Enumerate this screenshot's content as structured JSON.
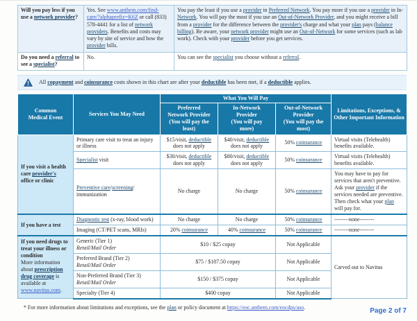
{
  "qa_table": {
    "rows": [
      {
        "question": [
          {
            "t": "Will you pay less if you use a ",
            "b": 1
          },
          {
            "t": "network provider",
            "b": 1,
            "u": 1
          },
          {
            "t": "?",
            "b": 1
          }
        ],
        "answer": [
          {
            "t": "Yes. See "
          },
          {
            "t": "www.anthem.com/find-care/?alphaprefix=K6Z",
            "l": 1
          },
          {
            "t": " or call (833) 578-4441 for a list of "
          },
          {
            "t": "network providers",
            "u": 1
          },
          {
            "t": ". Benefits and costs may vary by site of service and how the "
          },
          {
            "t": "provider",
            "u": 1
          },
          {
            "t": " bills."
          }
        ],
        "info": [
          {
            "t": "You pay the least if you use a "
          },
          {
            "t": "provider",
            "u": 1
          },
          {
            "t": " in "
          },
          {
            "t": "Preferred Network",
            "u": 1
          },
          {
            "t": ". You pay more if you use a "
          },
          {
            "t": "provider",
            "u": 1
          },
          {
            "t": " in In-"
          },
          {
            "t": "Network",
            "u": 1
          },
          {
            "t": ". You will pay the most if you use an "
          },
          {
            "t": "Out-of-Network Provider",
            "u": 1
          },
          {
            "t": ", and you might receive a bill from a "
          },
          {
            "t": "provider",
            "u": 1
          },
          {
            "t": " for the difference between the "
          },
          {
            "t": "provider's",
            "u": 1
          },
          {
            "t": " charge and what your "
          },
          {
            "t": "plan",
            "u": 1
          },
          {
            "t": " pays ("
          },
          {
            "t": "balance billing",
            "u": 1
          },
          {
            "t": "). Be aware, your "
          },
          {
            "t": "network provider",
            "u": 1
          },
          {
            "t": " might use an "
          },
          {
            "t": "Out-of-Network",
            "u": 1
          },
          {
            "t": " for some services (such as lab work). Check with your "
          },
          {
            "t": "provider",
            "u": 1
          },
          {
            "t": " before you get services."
          }
        ]
      },
      {
        "question": [
          {
            "t": "Do you need a ",
            "b": 1
          },
          {
            "t": "referral",
            "b": 1,
            "u": 1
          },
          {
            "t": " to see a ",
            "b": 1
          },
          {
            "t": "specialist",
            "b": 1,
            "u": 1
          },
          {
            "t": "?",
            "b": 1
          }
        ],
        "answer": [
          {
            "t": "No."
          }
        ],
        "info": [
          {
            "t": "You can see the "
          },
          {
            "t": "specialist",
            "u": 1
          },
          {
            "t": " you choose without a "
          },
          {
            "t": "referral",
            "u": 1
          },
          {
            "t": "."
          }
        ]
      }
    ]
  },
  "notice": {
    "segments": [
      {
        "t": "All "
      },
      {
        "t": "copayment",
        "b": 1,
        "u": 1
      },
      {
        "t": " and "
      },
      {
        "t": "coinsurance",
        "b": 1,
        "u": 1
      },
      {
        "t": " costs shown in this chart are after your "
      },
      {
        "t": "deductible",
        "b": 1,
        "u": 1
      },
      {
        "t": " has been met, if a "
      },
      {
        "t": "deductible",
        "b": 1,
        "u": 1
      },
      {
        "t": " applies."
      }
    ]
  },
  "main_table": {
    "header": {
      "common": [
        {
          "t": "Common"
        },
        {
          "br": 1
        },
        {
          "t": "Medical Event"
        }
      ],
      "services": [
        {
          "t": "Services You May Need"
        }
      ],
      "pay_group": [
        {
          "t": "What You Will Pay"
        }
      ],
      "preferred": [
        {
          "t": "Preferred"
        },
        {
          "br": 1
        },
        {
          "t": "Network Provider"
        },
        {
          "br": 1
        },
        {
          "t": "(You will pay the"
        },
        {
          "br": 1
        },
        {
          "t": "least)"
        }
      ],
      "in_network": [
        {
          "t": "In-Network"
        },
        {
          "br": 1
        },
        {
          "t": "Provider"
        },
        {
          "br": 1
        },
        {
          "t": "(You will pay"
        },
        {
          "br": 1
        },
        {
          "t": "more)"
        }
      ],
      "out_network": [
        {
          "t": "Out-of-Network"
        },
        {
          "br": 1
        },
        {
          "t": "Provider"
        },
        {
          "br": 1
        },
        {
          "t": "(You will pay the"
        },
        {
          "br": 1
        },
        {
          "t": "most)"
        }
      ],
      "limitations": [
        {
          "t": "Limitations, Exceptions, &"
        },
        {
          "br": 1
        },
        {
          "t": "Other Important Information"
        }
      ]
    },
    "sections": [
      {
        "event": [
          {
            "t": "If you visit a health care ",
            "b": 1
          },
          {
            "t": "provider's",
            "b": 1,
            "u": 1
          },
          {
            "t": " office or clinic",
            "b": 1
          }
        ],
        "rows": [
          {
            "service": [
              {
                "t": "Primary care visit to treat an injury or illness"
              }
            ],
            "preferred": [
              {
                "t": "$15/visit, "
              },
              {
                "t": "deductible",
                "u": 1
              },
              {
                "t": " does not apply"
              }
            ],
            "in_network": [
              {
                "t": "$40/visit, "
              },
              {
                "t": "deductible",
                "u": 1
              },
              {
                "t": " does not apply"
              }
            ],
            "out_network": [
              {
                "t": "50% "
              },
              {
                "t": "coinsurance",
                "u": 1
              }
            ],
            "limitation": [
              {
                "t": "Virtual visits (Telehealth) benefits available."
              }
            ]
          },
          {
            "service": [
              {
                "t": "Specialist",
                "u": 1
              },
              {
                "t": " visit"
              }
            ],
            "preferred": [
              {
                "t": "$30/visit, "
              },
              {
                "t": "deductible",
                "u": 1
              },
              {
                "t": " does not apply"
              }
            ],
            "in_network": [
              {
                "t": "$80/visit, "
              },
              {
                "t": "deductible",
                "u": 1
              },
              {
                "t": " does not apply"
              }
            ],
            "out_network": [
              {
                "t": "50% "
              },
              {
                "t": "coinsurance",
                "u": 1
              }
            ],
            "limitation": [
              {
                "t": "Virtual visits (Telehealth) benefits available."
              }
            ]
          },
          {
            "service": [
              {
                "t": "Preventive care",
                "u": 1
              },
              {
                "t": "/"
              },
              {
                "t": "screening",
                "u": 1
              },
              {
                "t": "/"
              },
              {
                "br": 1
              },
              {
                "t": "immunization"
              }
            ],
            "preferred": [
              {
                "t": "No charge"
              }
            ],
            "in_network": [
              {
                "t": "No charge"
              }
            ],
            "out_network": [
              {
                "t": "50% "
              },
              {
                "t": "coinsurance",
                "u": 1
              }
            ],
            "limitation": [
              {
                "t": "You may have to pay for services that aren't preventive. Ask your "
              },
              {
                "t": "provider",
                "u": 1
              },
              {
                "t": " if the services needed are preventive. Then check what your "
              },
              {
                "t": "plan",
                "u": 1
              },
              {
                "t": " will pay for."
              }
            ]
          }
        ]
      },
      {
        "event": [
          {
            "t": "If you have a test",
            "b": 1
          }
        ],
        "rows": [
          {
            "service": [
              {
                "t": "Diagnostic test",
                "u": 1
              },
              {
                "t": " (x-ray, blood work)"
              }
            ],
            "preferred": [
              {
                "t": "No charge"
              }
            ],
            "in_network": [
              {
                "t": "No charge"
              }
            ],
            "out_network": [
              {
                "t": "50% "
              },
              {
                "t": "coinsurance",
                "u": 1
              }
            ],
            "limitation": [
              {
                "t": "--------none--------"
              }
            ]
          },
          {
            "service": [
              {
                "t": "Imaging (CT/PET scans, MRIs)"
              }
            ],
            "preferred": [
              {
                "t": "20% "
              },
              {
                "t": "coinsurance",
                "u": 1
              }
            ],
            "in_network": [
              {
                "t": "40% "
              },
              {
                "t": "coinsurance",
                "u": 1
              }
            ],
            "out_network": [
              {
                "t": "50% "
              },
              {
                "t": "coinsurance",
                "u": 1
              }
            ],
            "limitation": [
              {
                "t": "--------none--------"
              }
            ]
          }
        ]
      },
      {
        "event": [
          {
            "t": "If you need drugs to treat your illness or condition",
            "b": 1
          },
          {
            "br": 1
          },
          {
            "t": "More information about "
          },
          {
            "t": "prescription drug coverage",
            "b": 1,
            "u": 1
          },
          {
            "t": " is available at "
          },
          {
            "t": "www.navitus.com",
            "l": 1
          },
          {
            "t": "."
          }
        ],
        "limitation_merged": [
          {
            "t": "Carved out to Navitus"
          }
        ],
        "rows": [
          {
            "service": [
              {
                "t": "Generic (Tier 1)"
              },
              {
                "br": 1
              },
              {
                "t": "Retail/Mail Order",
                "i": 1
              }
            ],
            "copay": [
              {
                "t": "$10 / $25 copay"
              }
            ],
            "out_network": [
              {
                "t": "Not Applicable"
              }
            ]
          },
          {
            "service": [
              {
                "t": "Preferred Brand (Tier 2)"
              },
              {
                "br": 1
              },
              {
                "t": "Retail/Mail Order",
                "i": 1
              }
            ],
            "copay": [
              {
                "t": "$75 / $187.50 copay"
              }
            ],
            "out_network": [
              {
                "t": "Not Applicable"
              }
            ]
          },
          {
            "service": [
              {
                "t": "Non-Preferred Brand (Tier 3)"
              },
              {
                "br": 1
              },
              {
                "t": "Retail/Mail Order",
                "i": 1
              }
            ],
            "copay": [
              {
                "t": "$150 / $375 copay"
              }
            ],
            "out_network": [
              {
                "t": "Not Applicable"
              }
            ]
          },
          {
            "service": [
              {
                "t": "Specialty (Tier 4)"
              }
            ],
            "copay": [
              {
                "t": "$400 copay"
              }
            ],
            "out_network": [
              {
                "t": "Not Applicable"
              }
            ]
          }
        ]
      }
    ]
  },
  "footer": {
    "footnote": [
      {
        "t": "* For more information about limitations and exceptions, see the "
      },
      {
        "t": "plan",
        "u": 1
      },
      {
        "t": " or policy document at "
      },
      {
        "t": "https://eoc.anthem.com/eocdps/aso",
        "l": 1
      },
      {
        "t": "."
      }
    ],
    "page_number": "Page 2 of 7"
  },
  "colors": {
    "header_blue": "#1878a8",
    "event_column_blue": "#cde8f7",
    "qa_row_blue": "#e8f1f9",
    "notice_blue": "#e7f2fb",
    "border_blue": "#8cbcd9",
    "link_blue": "#3a5cc8",
    "page_number_blue": "#2e6fd0"
  }
}
